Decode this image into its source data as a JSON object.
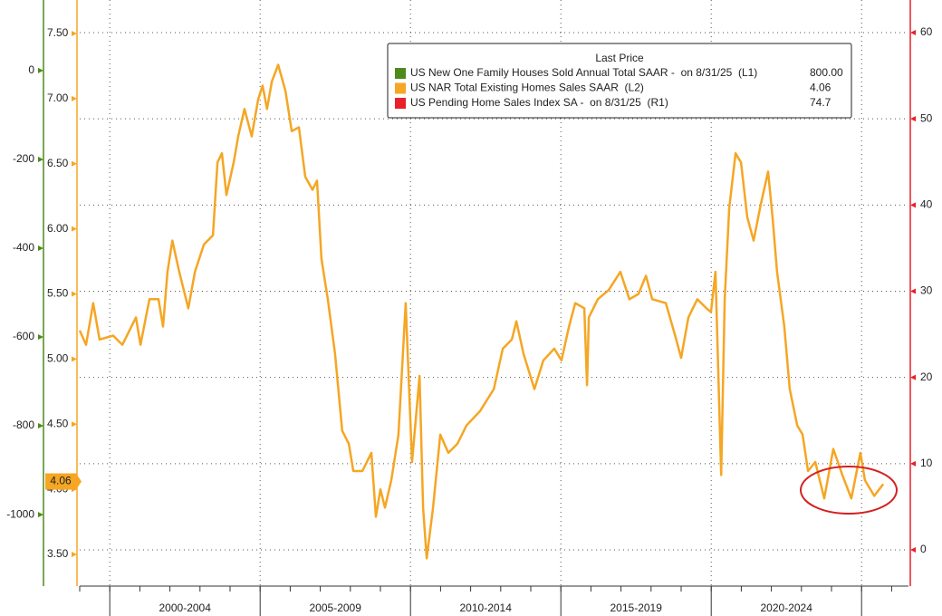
{
  "chart_data": {
    "type": "line",
    "legend_title": "Last Price",
    "categories": [
      "2000-2004",
      "2005-2009",
      "2010-2014",
      "2015-2019",
      "2020-2024"
    ],
    "xlim": [
      1999.0,
      2026.56
    ],
    "xticks": [
      2000,
      2005,
      2010,
      2015,
      2020,
      2025
    ],
    "ylim": [
      3.257,
      7.757
    ],
    "yticks": [
      {
        "value": 7.5,
        "label": "7.50"
      },
      {
        "value": 7.0,
        "label": "7.00"
      },
      {
        "value": 6.5,
        "label": "6.50"
      },
      {
        "value": 6.0,
        "label": "6.00"
      },
      {
        "value": 5.5,
        "label": "5.50"
      },
      {
        "value": 5.0,
        "label": "5.00"
      },
      {
        "value": 4.5,
        "label": "4.50"
      },
      {
        "value": 4.0,
        "label": "4.00"
      },
      {
        "value": 3.5,
        "label": "3.50"
      }
    ],
    "y2lim": [
      -4.2,
      63.78
    ],
    "y2ticks": [
      0,
      10,
      20,
      30,
      40,
      50,
      60
    ],
    "y3lim": [
      -1161,
      159
    ],
    "y3ticks": [
      0,
      -200,
      -400,
      -600,
      -800,
      -1000
    ],
    "grid": "y2",
    "series": [
      {
        "name": "US New One Family Houses Sold Annual Total SAAR -  on 8/31/25  (L1)",
        "color": "#4d8a1a",
        "axis": "y3",
        "last_price": 800,
        "last_price_label": "800.00",
        "x": [],
        "values": []
      },
      {
        "name": "US NAR Total Existing Homes Sales SAAR  (L2)",
        "color": "#f5a623",
        "axis": "y",
        "last_price": 4.06,
        "x": [
          1999.0,
          1999.21,
          1999.45,
          1999.66,
          2000.11,
          2000.42,
          2000.87,
          2001.02,
          2001.32,
          2001.62,
          2001.77,
          2001.92,
          2002.08,
          2002.31,
          2002.61,
          2002.83,
          2003.13,
          2003.43,
          2003.58,
          2003.73,
          2003.88,
          2004.12,
          2004.27,
          2004.48,
          2004.72,
          2004.93,
          2005.08,
          2005.23,
          2005.39,
          2005.6,
          2005.84,
          2006.05,
          2006.29,
          2006.5,
          2006.74,
          2006.89,
          2007.04,
          2007.25,
          2007.49,
          2007.73,
          2007.95,
          2008.1,
          2008.4,
          2008.7,
          2008.85,
          2009.0,
          2009.15,
          2009.36,
          2009.6,
          2009.84,
          2010.05,
          2010.3,
          2010.42,
          2010.54,
          2010.75,
          2010.99,
          2011.26,
          2011.56,
          2011.86,
          2012.31,
          2012.77,
          2013.07,
          2013.37,
          2013.52,
          2013.76,
          2014.12,
          2014.42,
          2014.78,
          2015.02,
          2015.27,
          2015.48,
          2015.78,
          2015.87,
          2015.93,
          2016.23,
          2016.59,
          2016.98,
          2017.28,
          2017.58,
          2017.83,
          2018.04,
          2018.49,
          2018.8,
          2019.0,
          2019.24,
          2019.54,
          2019.84,
          2019.99,
          2020.14,
          2020.33,
          2020.45,
          2020.6,
          2020.81,
          2020.99,
          2021.2,
          2021.41,
          2021.65,
          2021.89,
          2022.04,
          2022.19,
          2022.43,
          2022.61,
          2022.86,
          2023.04,
          2023.22,
          2023.46,
          2023.76,
          2024.06,
          2024.36,
          2024.66,
          2024.96,
          2025.11,
          2025.42,
          2025.72
        ],
        "values": [
          5.22,
          5.11,
          5.43,
          5.15,
          5.18,
          5.11,
          5.32,
          5.11,
          5.46,
          5.46,
          5.25,
          5.67,
          5.91,
          5.67,
          5.39,
          5.67,
          5.88,
          5.95,
          6.51,
          6.58,
          6.26,
          6.51,
          6.71,
          6.92,
          6.71,
          6.99,
          7.1,
          6.92,
          7.13,
          7.26,
          7.06,
          6.75,
          6.78,
          6.4,
          6.3,
          6.37,
          5.77,
          5.46,
          5.04,
          4.45,
          4.35,
          4.14,
          4.14,
          4.28,
          3.79,
          4.0,
          3.86,
          4.07,
          4.42,
          5.43,
          4.21,
          4.87,
          3.86,
          3.47,
          3.86,
          4.42,
          4.28,
          4.35,
          4.49,
          4.6,
          4.77,
          5.08,
          5.15,
          5.29,
          5.04,
          4.77,
          4.99,
          5.08,
          4.99,
          5.25,
          5.43,
          5.39,
          4.8,
          5.32,
          5.46,
          5.53,
          5.67,
          5.46,
          5.5,
          5.64,
          5.46,
          5.43,
          5.18,
          5.01,
          5.32,
          5.46,
          5.39,
          5.36,
          5.67,
          4.11,
          5.46,
          6.16,
          6.58,
          6.51,
          6.09,
          5.91,
          6.19,
          6.44,
          6.09,
          5.67,
          5.25,
          4.77,
          4.49,
          4.42,
          4.14,
          4.21,
          3.93,
          4.31,
          4.11,
          3.93,
          4.28,
          4.07,
          3.95,
          4.04
        ]
      },
      {
        "name": "US Pending Home Sales Index SA -  on 8/31/25  (R1)",
        "color": "#e8202a",
        "axis": "y2",
        "last_price": 74.7,
        "x": [],
        "values": []
      }
    ]
  }
}
